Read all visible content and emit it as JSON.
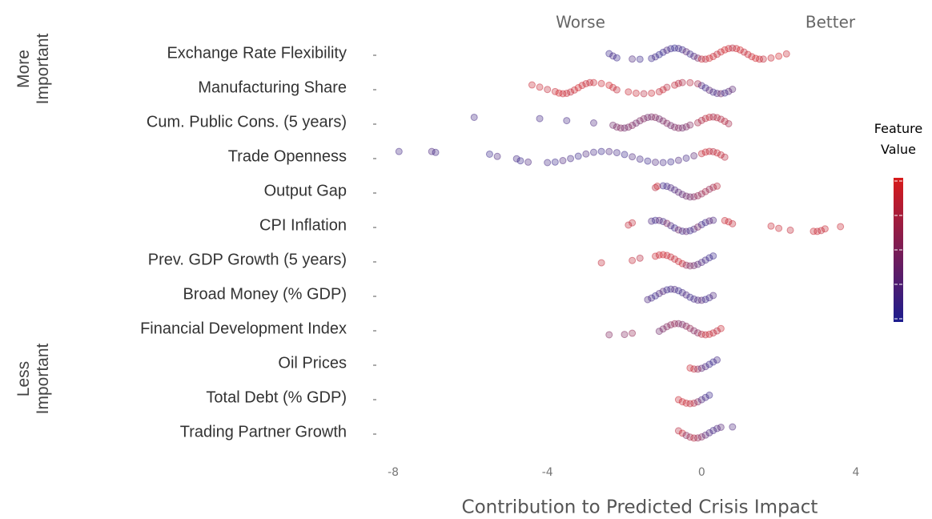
{
  "chart_data": {
    "type": "beeswarm",
    "x_label": "Contribution to Predicted Crisis Impact",
    "left_annotation": "Worse",
    "right_annotation": "Better",
    "top_axis_label": "More Important",
    "bottom_axis_label": "Less Important",
    "colorbar_label": "Feature Value",
    "colormap": {
      "low": "#1c1c8e",
      "high": "#d81b1b"
    },
    "xlim": [
      -8.5,
      4.5
    ],
    "xticks": [
      -8,
      -4,
      0,
      4
    ],
    "series": [
      {
        "name": "Exchange Rate Flexibility",
        "values": [
          -2.4,
          -2.3,
          -2.2,
          -1.8,
          -1.6,
          -1.3,
          -1.2,
          -1.1,
          -1,
          -0.9,
          -0.8,
          -0.7,
          -0.6,
          -0.5,
          -0.4,
          -0.3,
          -0.2,
          -0.1,
          0,
          0.1,
          0.2,
          0.3,
          0.4,
          0.5,
          0.6,
          0.7,
          0.8,
          0.9,
          1,
          1.1,
          1.2,
          1.3,
          1.4,
          1.5,
          1.6,
          1.8,
          2,
          2.2
        ],
        "feature_values": [
          0.1,
          0.15,
          0.1,
          0.2,
          0.1,
          0.1,
          0.15,
          0.05,
          0.1,
          0.2,
          0.1,
          0.05,
          0.15,
          0.1,
          0.3,
          0.1,
          0.2,
          0.4,
          0.9,
          0.8,
          0.95,
          0.9,
          0.85,
          0.9,
          0.95,
          0.9,
          0.8,
          0.9,
          0.95,
          0.85,
          0.9,
          0.9,
          0.95,
          0.9,
          0.85,
          0.9,
          0.95,
          0.9
        ]
      },
      {
        "name": "Manufacturing Share",
        "values": [
          -4.4,
          -4.2,
          -4,
          -3.8,
          -3.7,
          -3.6,
          -3.5,
          -3.4,
          -3.3,
          -3.2,
          -3.1,
          -3,
          -2.9,
          -2.8,
          -2.6,
          -2.4,
          -2.3,
          -2.2,
          -1.9,
          -1.7,
          -1.5,
          -1.3,
          -1.1,
          -1,
          -0.9,
          -0.7,
          -0.6,
          -0.5,
          -0.3,
          -0.1,
          0,
          0.1,
          0.2,
          0.3,
          0.4,
          0.5,
          0.6,
          0.7,
          0.8
        ],
        "feature_values": [
          0.9,
          0.9,
          0.85,
          0.9,
          0.95,
          0.9,
          0.9,
          0.85,
          0.9,
          0.95,
          0.9,
          0.9,
          0.85,
          0.9,
          0.9,
          0.95,
          0.9,
          0.85,
          0.9,
          0.9,
          0.8,
          0.9,
          0.85,
          0.9,
          0.8,
          0.85,
          0.8,
          0.75,
          0.8,
          0.7,
          0.2,
          0.1,
          0.3,
          0.15,
          0.2,
          0.4,
          0.1,
          0.25,
          0.3
        ]
      },
      {
        "name": "Cum. Public Cons. (5 years)",
        "values": [
          -5.9,
          -4.2,
          -3.5,
          -2.8,
          -2.3,
          -2.2,
          -2.1,
          -2,
          -1.9,
          -1.8,
          -1.7,
          -1.6,
          -1.5,
          -1.4,
          -1.3,
          -1.2,
          -1.1,
          -1,
          -0.9,
          -0.8,
          -0.7,
          -0.6,
          -0.5,
          -0.4,
          -0.3,
          -0.1,
          0,
          0.1,
          0.2,
          0.3,
          0.4,
          0.5,
          0.6,
          0.7
        ],
        "feature_values": [
          0.15,
          0.15,
          0.15,
          0.2,
          0.4,
          0.45,
          0.5,
          0.4,
          0.45,
          0.5,
          0.4,
          0.45,
          0.5,
          0.4,
          0.45,
          0.5,
          0.4,
          0.45,
          0.5,
          0.4,
          0.45,
          0.5,
          0.4,
          0.45,
          0.5,
          0.7,
          0.75,
          0.8,
          0.85,
          0.7,
          0.8,
          0.75,
          0.8,
          0.7
        ]
      },
      {
        "name": "Trade Openness",
        "values": [
          -7.85,
          -7,
          -6.9,
          -5.5,
          -5.3,
          -4.8,
          -4.7,
          -4.5,
          -4,
          -3.8,
          -3.6,
          -3.4,
          -3.2,
          -3,
          -2.8,
          -2.6,
          -2.4,
          -2.2,
          -2,
          -1.8,
          -1.6,
          -1.4,
          -1.2,
          -1,
          -0.8,
          -0.6,
          -0.4,
          -0.2,
          0,
          0.1,
          0.2,
          0.3,
          0.4,
          0.5,
          0.6
        ],
        "feature_values": [
          0.15,
          0.2,
          0.15,
          0.1,
          0.2,
          0.15,
          0.1,
          0.2,
          0.15,
          0.1,
          0.2,
          0.15,
          0.1,
          0.2,
          0.15,
          0.1,
          0.2,
          0.15,
          0.1,
          0.2,
          0.15,
          0.1,
          0.2,
          0.15,
          0.1,
          0.2,
          0.15,
          0.3,
          0.85,
          0.9,
          0.85,
          0.8,
          0.9,
          0.85,
          0.8
        ]
      },
      {
        "name": "Output Gap",
        "values": [
          -1.2,
          -1.15,
          -1,
          -0.9,
          -0.8,
          -0.7,
          -0.6,
          -0.5,
          -0.4,
          -0.3,
          -0.2,
          -0.1,
          0,
          0.1,
          0.2,
          0.3,
          0.4
        ],
        "feature_values": [
          0.8,
          0.9,
          0.1,
          0.15,
          0.2,
          0.2,
          0.3,
          0.3,
          0.4,
          0.4,
          0.5,
          0.6,
          0.6,
          0.7,
          0.6,
          0.7,
          0.8
        ]
      },
      {
        "name": "CPI Inflation",
        "values": [
          -1.9,
          -1.8,
          -1.3,
          -1.2,
          -1.1,
          -1,
          -0.9,
          -0.8,
          -0.7,
          -0.6,
          -0.5,
          -0.4,
          -0.3,
          -0.2,
          -0.1,
          0,
          0.1,
          0.2,
          0.3,
          0.6,
          0.7,
          0.8,
          1.8,
          2,
          2.3,
          2.9,
          3,
          3.1,
          3.2,
          3.6
        ],
        "feature_values": [
          0.85,
          0.85,
          0.2,
          0.1,
          0.3,
          0.15,
          0.5,
          0.2,
          0.1,
          0.4,
          0.15,
          0.3,
          0.1,
          0.2,
          0.45,
          0.15,
          0.1,
          0.3,
          0.2,
          0.9,
          0.9,
          0.85,
          0.9,
          0.9,
          0.85,
          0.9,
          0.9,
          0.85,
          0.9,
          0.9
        ]
      },
      {
        "name": "Prev. GDP Growth (5 years)",
        "values": [
          -2.6,
          -1.8,
          -1.6,
          -1.2,
          -1.1,
          -1,
          -0.9,
          -0.8,
          -0.7,
          -0.6,
          -0.5,
          -0.4,
          -0.3,
          -0.2,
          -0.1,
          0,
          0.1,
          0.2,
          0.3
        ],
        "feature_values": [
          0.85,
          0.85,
          0.8,
          0.9,
          0.9,
          0.95,
          0.9,
          0.9,
          0.85,
          0.9,
          0.9,
          0.6,
          0.5,
          0.4,
          0.3,
          0.2,
          0.15,
          0.1,
          0.1
        ]
      },
      {
        "name": "Broad Money (% GDP)",
        "values": [
          -1.4,
          -1.3,
          -1.2,
          -1.1,
          -1,
          -0.9,
          -0.8,
          -0.7,
          -0.6,
          -0.5,
          -0.4,
          -0.3,
          -0.2,
          -0.1,
          0,
          0.1,
          0.2,
          0.3
        ],
        "feature_values": [
          0.2,
          0.15,
          0.1,
          0.2,
          0.25,
          0.1,
          0.15,
          0.2,
          0.1,
          0.15,
          0.2,
          0.1,
          0.15,
          0.2,
          0.25,
          0.1,
          0.15,
          0.2
        ]
      },
      {
        "name": "Financial Development Index",
        "values": [
          -2.4,
          -2,
          -1.8,
          -1.1,
          -1,
          -0.9,
          -0.8,
          -0.7,
          -0.6,
          -0.5,
          -0.4,
          -0.3,
          -0.2,
          -0.1,
          0,
          0.1,
          0.2,
          0.3,
          0.4,
          0.5
        ],
        "feature_values": [
          0.5,
          0.5,
          0.6,
          0.4,
          0.45,
          0.5,
          0.55,
          0.6,
          0.5,
          0.45,
          0.55,
          0.6,
          0.5,
          0.55,
          0.8,
          0.85,
          0.9,
          0.85,
          0.8,
          0.9
        ]
      },
      {
        "name": "Oil Prices",
        "values": [
          -0.3,
          -0.2,
          -0.1,
          0,
          0.1,
          0.2,
          0.3,
          0.4
        ],
        "feature_values": [
          0.9,
          0.85,
          0.6,
          0.3,
          0.2,
          0.1,
          0.1,
          0.15
        ]
      },
      {
        "name": "Total Debt (% GDP)",
        "values": [
          -0.6,
          -0.5,
          -0.4,
          -0.3,
          -0.2,
          -0.1,
          0,
          0.1,
          0.2
        ],
        "feature_values": [
          0.9,
          0.9,
          0.9,
          0.85,
          0.8,
          0.5,
          0.2,
          0.15,
          0.1
        ]
      },
      {
        "name": "Trading Partner Growth",
        "values": [
          -0.6,
          -0.5,
          -0.4,
          -0.3,
          -0.2,
          -0.1,
          0,
          0.1,
          0.2,
          0.3,
          0.4,
          0.5,
          0.8
        ],
        "feature_values": [
          0.8,
          0.9,
          0.5,
          0.7,
          0.8,
          0.6,
          0.5,
          0.3,
          0.2,
          0.15,
          0.2,
          0.25,
          0.2
        ]
      }
    ]
  }
}
